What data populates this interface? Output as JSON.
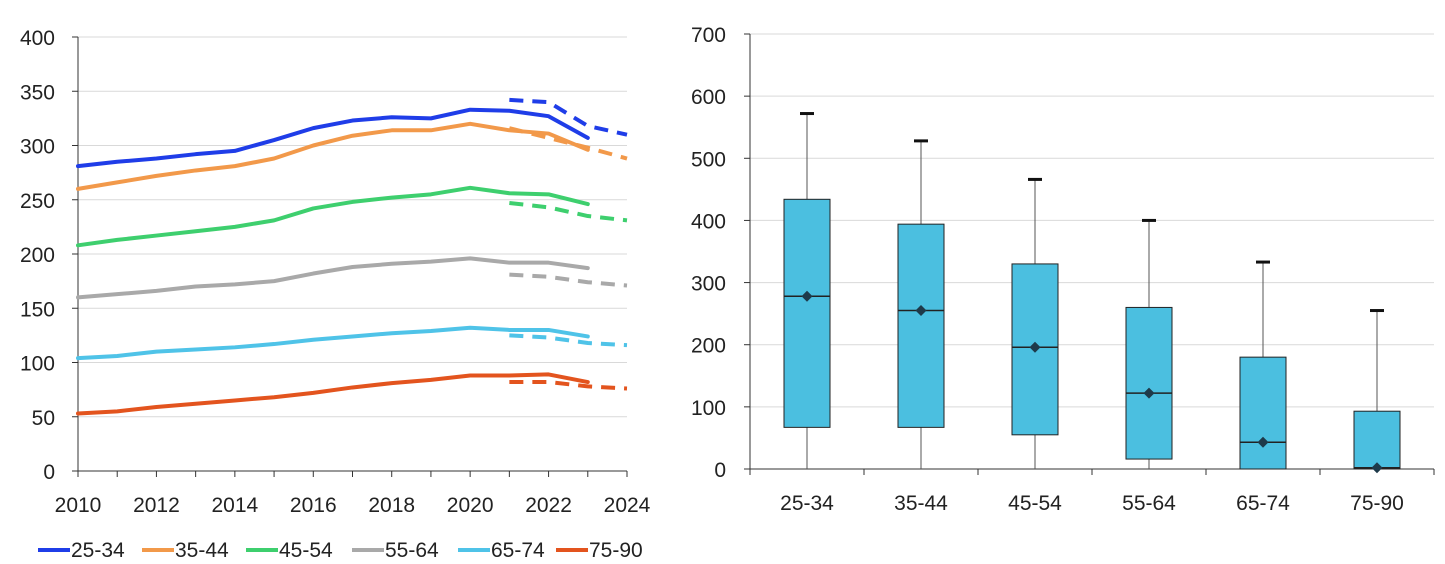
{
  "chart_data": [
    {
      "type": "line",
      "title": "",
      "xlabel": "",
      "ylabel": "",
      "xlim": [
        2010,
        2024
      ],
      "ylim": [
        0,
        400
      ],
      "xticks": [
        "2010",
        "2012",
        "2014",
        "2016",
        "2018",
        "2020",
        "2022",
        "2024"
      ],
      "yticks": [
        "0",
        "50",
        "100",
        "150",
        "200",
        "250",
        "300",
        "350",
        "400"
      ],
      "grid": true,
      "legend_position": "bottom",
      "x": [
        2010,
        2011,
        2012,
        2013,
        2014,
        2015,
        2016,
        2017,
        2018,
        2019,
        2020,
        2021,
        2022,
        2023
      ],
      "series": [
        {
          "name": "25-34",
          "color": "#1f3de8",
          "values": [
            281,
            285,
            288,
            292,
            295,
            305,
            316,
            323,
            326,
            325,
            333,
            332,
            327,
            307
          ],
          "projection": {
            "x": [
              2021,
              2022,
              2023,
              2024
            ],
            "values": [
              342,
              340,
              318,
              310
            ]
          }
        },
        {
          "name": "35-44",
          "color": "#f2994a",
          "values": [
            260,
            266,
            272,
            277,
            281,
            288,
            300,
            309,
            314,
            314,
            320,
            314,
            311,
            296
          ],
          "projection": {
            "x": [
              2021,
              2022,
              2023,
              2024
            ],
            "values": [
              316,
              307,
              298,
              288
            ]
          }
        },
        {
          "name": "45-54",
          "color": "#3ecf6e",
          "values": [
            208,
            213,
            217,
            221,
            225,
            231,
            242,
            248,
            252,
            255,
            261,
            256,
            255,
            246
          ],
          "projection": {
            "x": [
              2021,
              2022,
              2023,
              2024
            ],
            "values": [
              247,
              243,
              235,
              231
            ]
          }
        },
        {
          "name": "55-64",
          "color": "#a9a9a9",
          "values": [
            160,
            163,
            166,
            170,
            172,
            175,
            182,
            188,
            191,
            193,
            196,
            192,
            192,
            187
          ],
          "projection": {
            "x": [
              2021,
              2022,
              2023,
              2024
            ],
            "values": [
              181,
              179,
              174,
              171
            ]
          }
        },
        {
          "name": "65-74",
          "color": "#4fc3e8",
          "values": [
            104,
            106,
            110,
            112,
            114,
            117,
            121,
            124,
            127,
            129,
            132,
            130,
            130,
            124
          ],
          "projection": {
            "x": [
              2021,
              2022,
              2023,
              2024
            ],
            "values": [
              125,
              123,
              118,
              116
            ]
          }
        },
        {
          "name": "75-90",
          "color": "#e3541e",
          "values": [
            53,
            55,
            59,
            62,
            65,
            68,
            72,
            77,
            81,
            84,
            88,
            88,
            89,
            82
          ],
          "projection": {
            "x": [
              2021,
              2022,
              2023,
              2024
            ],
            "values": [
              82,
              82,
              78,
              76
            ]
          }
        }
      ]
    },
    {
      "type": "box",
      "title": "",
      "xlabel": "",
      "ylabel": "",
      "ylim": [
        0,
        700
      ],
      "yticks": [
        "0",
        "100",
        "200",
        "300",
        "400",
        "500",
        "600",
        "700"
      ],
      "grid": true,
      "box_color": "#4bbfe0",
      "categories": [
        "25-34",
        "35-44",
        "45-54",
        "55-64",
        "65-74",
        "75-90"
      ],
      "boxes": [
        {
          "whisker_low": 0,
          "q1": 67,
          "median": 278,
          "mean": 278,
          "q3": 434,
          "whisker_high": 572
        },
        {
          "whisker_low": 0,
          "q1": 67,
          "median": 255,
          "mean": 255,
          "q3": 394,
          "whisker_high": 528
        },
        {
          "whisker_low": 0,
          "q1": 55,
          "median": 196,
          "mean": 196,
          "q3": 330,
          "whisker_high": 466
        },
        {
          "whisker_low": 0,
          "q1": 16,
          "median": 122,
          "mean": 122,
          "q3": 260,
          "whisker_high": 400
        },
        {
          "whisker_low": 0,
          "q1": 0,
          "median": 43,
          "mean": 43,
          "q3": 180,
          "whisker_high": 333
        },
        {
          "whisker_low": 0,
          "q1": 0,
          "median": 2,
          "mean": 2,
          "q3": 93,
          "whisker_high": 255
        }
      ]
    }
  ]
}
